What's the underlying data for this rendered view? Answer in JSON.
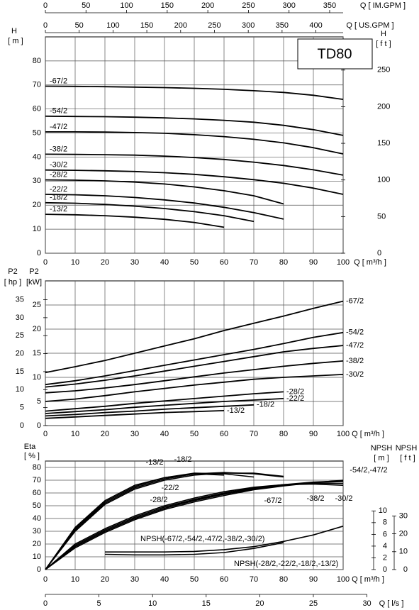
{
  "chart_data": [
    {
      "type": "line",
      "title": "TD80",
      "x": [
        0,
        10,
        20,
        30,
        40,
        50,
        60,
        70,
        80,
        90,
        100
      ],
      "xlim": [
        0,
        100
      ],
      "xticks": [
        0,
        10,
        20,
        30,
        40,
        50,
        60,
        70,
        80,
        90,
        100
      ],
      "x_label": "Q [ m³/h ]",
      "ylim": [
        0,
        90
      ],
      "yticks": [
        0,
        10,
        20,
        30,
        40,
        50,
        60,
        70,
        80
      ],
      "y_label": "H",
      "y_unit": "[ m ]",
      "y2lim": [
        0,
        295.3
      ],
      "y2ticks": [
        0,
        50,
        100,
        150,
        200,
        250
      ],
      "y2_label": "H",
      "y2_unit": "[ f t ]",
      "top_axes": [
        {
          "label": "Q [ IM.GPM ]",
          "xlim": [
            0,
            366.6
          ],
          "xticks": [
            0,
            50,
            100,
            150,
            200,
            250,
            300,
            350
          ]
        },
        {
          "label": "Q [ US.GPM ]",
          "xlim": [
            0,
            440.3
          ],
          "xticks": [
            0,
            50,
            100,
            150,
            200,
            250,
            300,
            350,
            400
          ]
        }
      ],
      "grid": true,
      "series": [
        {
          "name": "-67/2",
          "color": "#000000",
          "values": [
            69.5,
            69.4,
            69.3,
            69.1,
            68.9,
            68.6,
            68.2,
            67.6,
            66.9,
            65.7,
            64
          ]
        },
        {
          "name": "-54/2",
          "color": "#000000",
          "values": [
            57,
            56.9,
            56.8,
            56.6,
            56.3,
            55.9,
            55.3,
            54.5,
            53.2,
            51.4,
            49
          ]
        },
        {
          "name": "-47/2",
          "color": "#000000",
          "values": [
            50.5,
            50.5,
            50.4,
            50.2,
            49.9,
            49.3,
            48.5,
            47.4,
            45.9,
            43.9,
            41.3
          ]
        },
        {
          "name": "-38/2",
          "color": "#000000",
          "values": [
            41.2,
            41.1,
            41,
            40.8,
            40.4,
            39.8,
            39,
            37.9,
            36.5,
            34.7,
            32.5
          ]
        },
        {
          "name": "-30/2",
          "color": "#000000",
          "values": [
            34.6,
            34.5,
            34.3,
            34,
            33.5,
            32.8,
            31.8,
            30.6,
            29.1,
            27.1,
            24.5
          ]
        },
        {
          "name": "-28/2",
          "color": "#000000",
          "values": [
            30.5,
            30.4,
            30.1,
            29.6,
            28.8,
            27.6,
            26,
            23.9,
            20.5,
            null,
            null
          ]
        },
        {
          "name": "-22/2",
          "color": "#000000",
          "values": [
            24.5,
            24.3,
            23.9,
            23.2,
            22.2,
            20.9,
            19.1,
            16.9,
            14.2,
            null,
            null
          ]
        },
        {
          "name": "-18/2",
          "color": "#000000",
          "values": [
            21,
            20.8,
            20.3,
            19.6,
            18.6,
            17.3,
            15.6,
            13.2,
            null,
            null,
            null
          ]
        },
        {
          "name": "-13/2",
          "color": "#000000",
          "values": [
            16.2,
            16,
            15.6,
            15,
            14.1,
            12.8,
            10.8,
            null,
            null,
            null,
            null
          ]
        }
      ]
    },
    {
      "type": "line",
      "x": [
        0,
        10,
        20,
        30,
        40,
        50,
        60,
        70,
        80,
        90,
        100
      ],
      "xlim": [
        0,
        100
      ],
      "xticks": [
        0,
        10,
        20,
        30,
        40,
        50,
        60,
        70,
        80,
        90,
        100
      ],
      "x_label": "Q [ m³/h ]",
      "ylim": [
        0,
        30
      ],
      "yticks": [
        0,
        5,
        10,
        15,
        20,
        25
      ],
      "y_label": "P2",
      "y_unit": "[kW]",
      "y2lim": [
        0,
        40.23
      ],
      "y2ticks": [
        0,
        5,
        10,
        15,
        20,
        25,
        30,
        35
      ],
      "y2_label": "P2",
      "y2_unit": "[ hp ]",
      "grid": true,
      "series": [
        {
          "name": "-67/2",
          "color": "#000000",
          "values": [
            11,
            12.2,
            13.5,
            15,
            16.5,
            18,
            19.7,
            21.2,
            22.7,
            24.3,
            25.8
          ]
        },
        {
          "name": "-54/2",
          "color": "#000000",
          "values": [
            8.5,
            9.3,
            10.3,
            11.4,
            12.5,
            13.6,
            14.7,
            15.8,
            17,
            18.3,
            19.3
          ]
        },
        {
          "name": "-47/2",
          "color": "#000000",
          "values": [
            8,
            8.6,
            9.4,
            10.3,
            11.3,
            12.3,
            13.3,
            14.3,
            15.3,
            16,
            16.6
          ]
        },
        {
          "name": "-38/2",
          "color": "#000000",
          "values": [
            6.8,
            7.2,
            7.8,
            8.5,
            9.3,
            10.1,
            10.9,
            11.6,
            12.3,
            12.9,
            13.4
          ]
        },
        {
          "name": "-30/2",
          "color": "#000000",
          "values": [
            5,
            5.5,
            6.2,
            7,
            7.7,
            8.4,
            9,
            9.6,
            10,
            10.3,
            10.6
          ]
        },
        {
          "name": "-28/2",
          "color": "#000000",
          "values": [
            3,
            3.5,
            4,
            4.6,
            5.1,
            5.6,
            6.1,
            6.6,
            7,
            null,
            null
          ]
        },
        {
          "name": "-22/2",
          "color": "#000000",
          "values": [
            2.5,
            2.9,
            3.3,
            3.8,
            4.2,
            4.6,
            5,
            5.3,
            5.6,
            null,
            null
          ]
        },
        {
          "name": "-18/2",
          "color": "#000000",
          "values": [
            2,
            2.3,
            2.7,
            3,
            3.4,
            3.7,
            4,
            4.3,
            null,
            null,
            null
          ]
        },
        {
          "name": "-13/2",
          "color": "#000000",
          "values": [
            1.5,
            1.8,
            2.1,
            2.4,
            2.7,
            2.9,
            3.1,
            null,
            null,
            null,
            null
          ]
        }
      ]
    },
    {
      "type": "line",
      "x": [
        0,
        10,
        20,
        30,
        40,
        50,
        60,
        70,
        80,
        90,
        100
      ],
      "xlim": [
        0,
        100
      ],
      "xticks": [
        0,
        10,
        20,
        30,
        40,
        50,
        60,
        70,
        80,
        90,
        100
      ],
      "x_label": "Q [ m³/h ]",
      "x2lim": [
        0,
        27.78
      ],
      "x2ticks": [
        0,
        5,
        10,
        15,
        20,
        25,
        30
      ],
      "x2_label": "Q [ l/s ]",
      "ylim": [
        0,
        85
      ],
      "yticks": [
        0,
        10,
        20,
        30,
        40,
        50,
        60,
        70,
        80
      ],
      "y_label": "Eta",
      "y_unit": "[ % ]",
      "y2lim": [
        0,
        18.5
      ],
      "y2ticks": [
        0,
        2,
        4,
        6,
        8,
        10
      ],
      "y2_label": "NPSH",
      "y2_unit": "[ m ]",
      "y3lim": [
        0,
        60.7
      ],
      "y3ticks": [
        0,
        10,
        20,
        30
      ],
      "y3_label": "NPSH",
      "y3_unit": "[ f t ]",
      "grid": true,
      "annotations": [
        "-54/2,-47/2"
      ],
      "series": [
        {
          "name": "-13/2",
          "color": "#000000",
          "values": [
            0,
            33,
            54,
            66,
            72,
            75,
            74,
            null,
            null,
            null,
            null
          ]
        },
        {
          "name": "-18/2",
          "color": "#000000",
          "values": [
            0,
            32,
            53,
            65,
            72,
            75.5,
            75,
            72.5,
            null,
            null,
            null
          ]
        },
        {
          "name": "-22/2",
          "color": "#000000",
          "values": [
            0,
            31,
            52,
            64,
            71,
            75,
            76,
            75,
            72.5,
            null,
            null
          ]
        },
        {
          "name": "-28/2",
          "color": "#000000",
          "values": [
            0,
            30,
            51,
            63,
            70,
            74,
            75.5,
            75.5,
            73,
            null,
            null
          ]
        },
        {
          "name": "-67/2",
          "color": "#000000",
          "values": [
            0,
            17,
            29,
            39,
            47,
            53,
            58,
            62.5,
            65.5,
            68,
            70
          ]
        },
        {
          "color": "#000000",
          "values": [
            0,
            18,
            30,
            40,
            48,
            54,
            59,
            63,
            66,
            68,
            69
          ]
        },
        {
          "color": "#000000",
          "values": [
            0,
            18,
            30,
            40,
            48,
            54.5,
            59.5,
            63.5,
            66.5,
            68.5,
            69.5
          ]
        },
        {
          "name": "-38/2",
          "color": "#000000",
          "values": [
            0,
            19,
            31,
            41,
            49,
            55,
            60,
            64,
            66.5,
            67.5,
            67.5
          ]
        },
        {
          "name": "-30/2",
          "color": "#000000",
          "values": [
            0,
            20,
            32,
            42,
            50,
            56,
            61,
            64.5,
            66.5,
            67,
            66
          ]
        },
        {
          "name": "NPSH(-67/2,-54/2,-47/2,-38/2,-30/2)",
          "color": "#000000",
          "axis": "y2",
          "values": [
            null,
            null,
            3,
            3,
            3,
            3.1,
            3.4,
            3.9,
            4.8,
            5.9,
            7.4
          ]
        },
        {
          "name": "NPSH(-28/2,-22/2,-18/2,-13/2)",
          "color": "#000000",
          "axis": "y2",
          "values": [
            null,
            null,
            2.6,
            2.5,
            2.5,
            2.6,
            2.9,
            3.6,
            4.6,
            null,
            null
          ]
        }
      ]
    }
  ]
}
